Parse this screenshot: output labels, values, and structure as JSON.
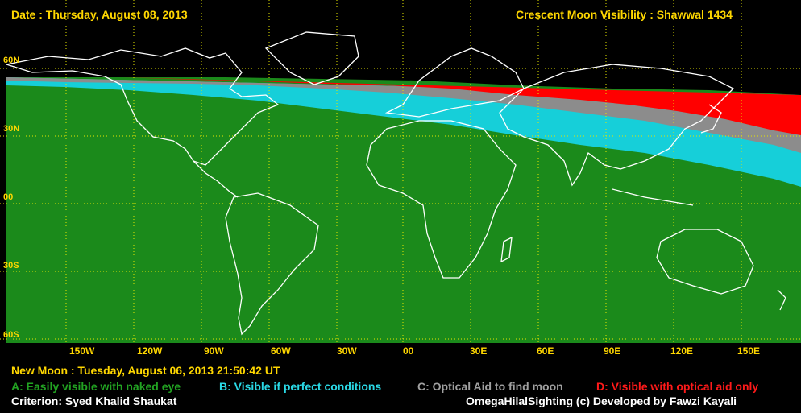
{
  "header": {
    "date": "Date : Thursday, August 08, 2013",
    "title": "Crescent Moon Visibility : Shawwal  1434"
  },
  "lat_labels": [
    "60N",
    "30N",
    "00",
    "30S",
    "60S"
  ],
  "lon_labels": [
    "150W",
    "120W",
    "90W",
    "60W",
    "30W",
    "00",
    "30E",
    "60E",
    "90E",
    "120E",
    "150E"
  ],
  "footer": {
    "new_moon": "New Moon : Tuesday, August 06, 2013  21:50:42  UT",
    "legend_a": "A: Easily visible with naked eye",
    "legend_b": "B: Visible if perfect conditions",
    "legend_c": "C: Optical Aid to find moon",
    "legend_d": "D: Visible with optical aid only",
    "criterion": "Criterion: Syed Khalid Shaukat",
    "credit": "OmegaHilalSighting  (c)  Developed by Fawzi Kayali"
  },
  "colors": {
    "zone_a": "#1b8a1b",
    "zone_b": "#16cfd9",
    "zone_c": "#8c8c8c",
    "zone_d": "#ff0000",
    "grid": "#e6e600",
    "coast": "#ffffff"
  }
}
